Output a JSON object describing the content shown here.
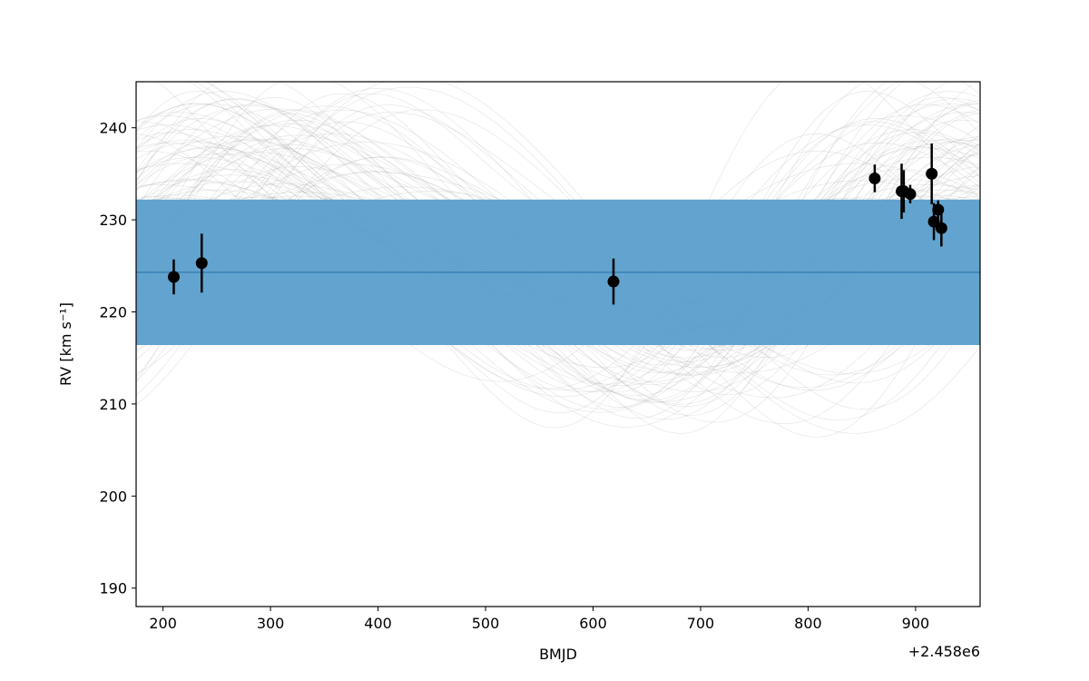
{
  "chart_data": {
    "type": "scatter",
    "title": "",
    "xlabel": "BMJD",
    "ylabel": "RV [km s⁻¹]",
    "x_offset_label": "+2.458e6",
    "xlim": [
      175,
      960
    ],
    "ylim": [
      188,
      245
    ],
    "x_ticks": [
      200,
      300,
      400,
      500,
      600,
      700,
      800,
      900
    ],
    "y_ticks": [
      190,
      200,
      210,
      220,
      230,
      240
    ],
    "grid": false,
    "legend": "none",
    "band": {
      "y_center": 224.3,
      "y_low": 216.4,
      "y_high": 232.2,
      "color": "#5a9fcc",
      "line_color": "#3a80b5"
    },
    "points": [
      {
        "x": 210,
        "y": 223.8,
        "err": 1.9
      },
      {
        "x": 236,
        "y": 225.3,
        "err": 3.2
      },
      {
        "x": 619,
        "y": 223.3,
        "err": 2.5
      },
      {
        "x": 862,
        "y": 234.5,
        "err": 1.5
      },
      {
        "x": 887,
        "y": 233.1,
        "err": 3.0
      },
      {
        "x": 889,
        "y": 233.1,
        "err": 2.3
      },
      {
        "x": 895,
        "y": 232.8,
        "err": 1.0
      },
      {
        "x": 915,
        "y": 235.0,
        "err": 3.3
      },
      {
        "x": 917,
        "y": 229.8,
        "err": 2.0
      },
      {
        "x": 921,
        "y": 231.1,
        "err": 1.0
      },
      {
        "x": 924,
        "y": 229.1,
        "err": 2.0
      }
    ],
    "marker_color": "#000000",
    "model_curve_color": "#b0b0b0"
  }
}
